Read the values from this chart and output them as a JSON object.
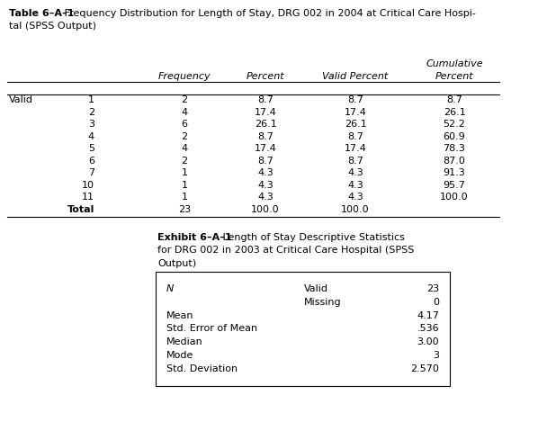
{
  "title_bold": "Table 6–A–1",
  "title_rest": " Frequency Distribution for Length of Stay, DRG 002 in 2004 at Critical Care Hospi-",
  "title_line2": "tal (SPSS Output)",
  "table1_rows": [
    [
      "1",
      "2",
      "8.7",
      "8.7",
      "8.7"
    ],
    [
      "2",
      "4",
      "17.4",
      "17.4",
      "26.1"
    ],
    [
      "3",
      "6",
      "26.1",
      "26.1",
      "52.2"
    ],
    [
      "4",
      "2",
      "8.7",
      "8.7",
      "60.9"
    ],
    [
      "5",
      "4",
      "17.4",
      "17.4",
      "78.3"
    ],
    [
      "6",
      "2",
      "8.7",
      "8.7",
      "87.0"
    ],
    [
      "7",
      "1",
      "4.3",
      "4.3",
      "91.3"
    ],
    [
      "10",
      "1",
      "4.3",
      "4.3",
      "95.7"
    ],
    [
      "11",
      "1",
      "4.3",
      "4.3",
      "100.0"
    ],
    [
      "Total",
      "23",
      "100.0",
      "100.0",
      ""
    ]
  ],
  "exhibit_bold": "Exhibit 6–A–1",
  "exhibit_rest": " Length of Stay Descriptive Statistics",
  "exhibit_line2": "for DRG 002 in 2003 at Critical Care Hospital (SPSS",
  "exhibit_line3": "Output)",
  "table2_rows": [
    [
      "N",
      "Valid",
      "23"
    ],
    [
      "",
      "Missing",
      "0"
    ],
    [
      "Mean",
      "",
      "4.17"
    ],
    [
      "Std. Error of Mean",
      "",
      ".536"
    ],
    [
      "Median",
      "",
      "3.00"
    ],
    [
      "Mode",
      "",
      "3"
    ],
    [
      "Std. Deviation",
      "",
      "2.570"
    ]
  ],
  "bg_color": "#ffffff",
  "text_color": "#000000",
  "title_fs": 8.0,
  "body_fs": 8.0,
  "header_fs": 8.0
}
